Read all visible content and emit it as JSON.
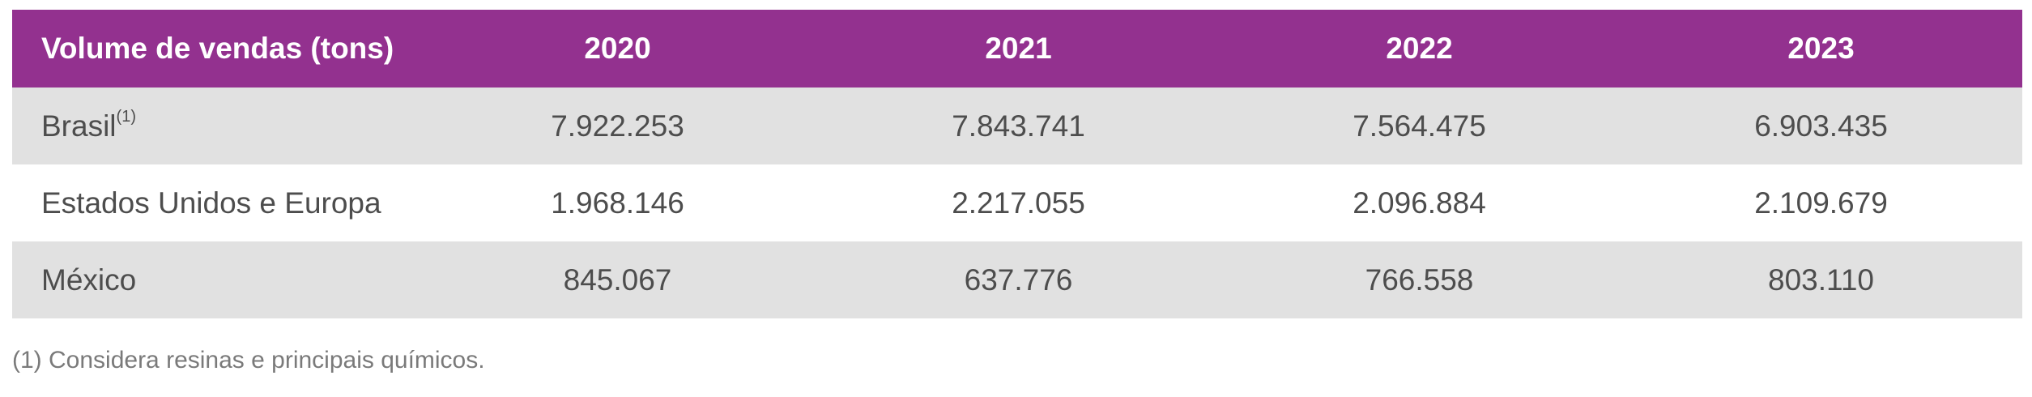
{
  "table": {
    "headers": [
      "Volume de vendas (tons)",
      "2020",
      "2021",
      "2022",
      "2023"
    ],
    "rows": [
      {
        "label": "Brasil",
        "sup": "(1)",
        "values": [
          "7.922.253",
          "7.843.741",
          "7.564.475",
          "6.903.435"
        ]
      },
      {
        "label": "Estados Unidos e Europa",
        "sup": "",
        "values": [
          "1.968.146",
          "2.217.055",
          "2.096.884",
          "2.109.679"
        ]
      },
      {
        "label": "México",
        "sup": "",
        "values": [
          "845.067",
          "637.776",
          "766.558",
          "803.110"
        ]
      }
    ]
  },
  "footnote": "(1) Considera resinas e principais químicos.",
  "colors": {
    "header_bg": "#93318f",
    "header_text": "#ffffff",
    "row_shaded": "#e1e1e1",
    "body_text": "#4d4d4d",
    "footnote_text": "#7a7a7a"
  }
}
